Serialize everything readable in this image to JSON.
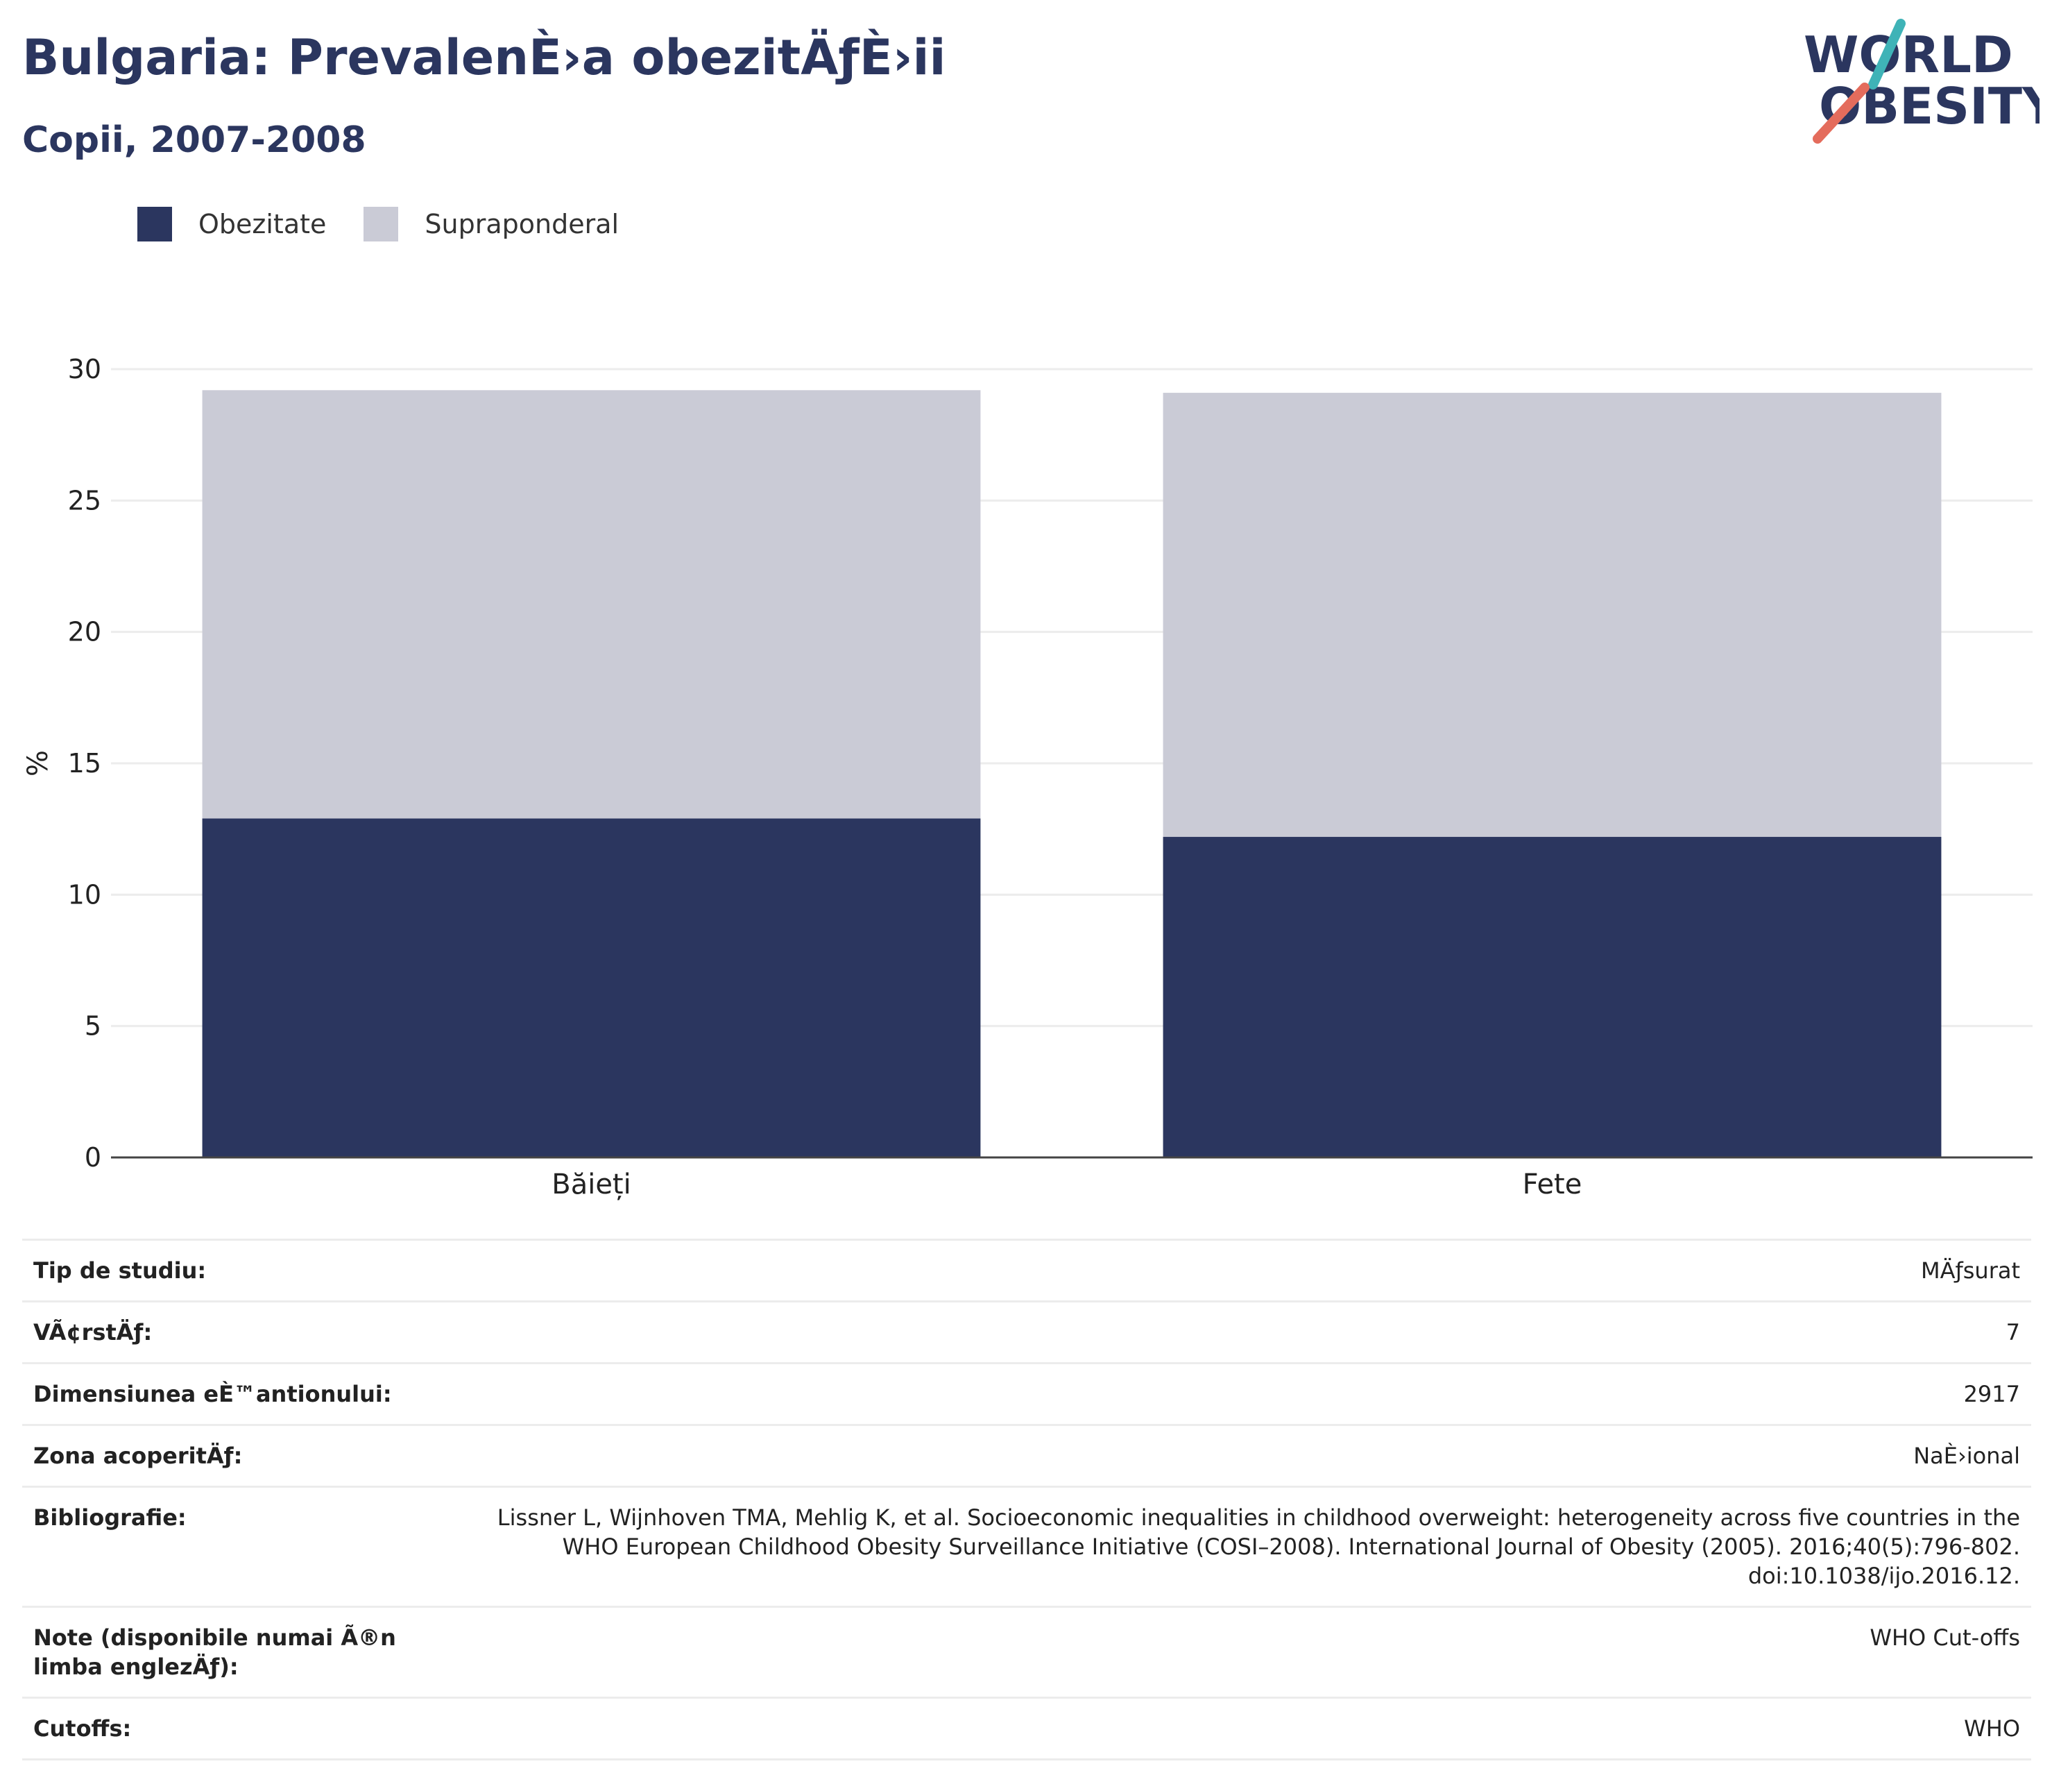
{
  "header": {
    "title": "Bulgaria: PrevalenÈ›a obezitÄƒÈ›ii",
    "subtitle": "Copii, 2007-2008",
    "logo_line1": "WORLD",
    "logo_line2": "OBESITY"
  },
  "colors": {
    "obesity": "#2b365f",
    "overweight": "#cacbd6",
    "text": "#2b365f",
    "logo_teal": "#3fb3b7",
    "logo_coral": "#e46c5c"
  },
  "chart_data": {
    "type": "bar",
    "stacked": true,
    "categories": [
      "Băieți",
      "Fete"
    ],
    "series": [
      {
        "name": "Obezitate",
        "values": [
          12.9,
          12.2
        ]
      },
      {
        "name": "Supraponderal",
        "values": [
          16.3,
          16.9
        ]
      }
    ],
    "title": "Bulgaria: PrevalenÈ›a obezitÄƒÈ›ii",
    "subtitle": "Copii, 2007-2008",
    "xlabel": "",
    "ylabel": "%",
    "ylim": [
      0,
      30
    ],
    "yticks": [
      0,
      5,
      10,
      15,
      20,
      25,
      30
    ],
    "grid": true,
    "legend": "top-left"
  },
  "info": {
    "rows": [
      {
        "label": "Tip de studiu:",
        "value": "MÄƒsurat"
      },
      {
        "label": "VÃ¢rstÄƒ:",
        "value": "7"
      },
      {
        "label": "Dimensiunea eÈ™antionului:",
        "value": "2917"
      },
      {
        "label": "Zona acoperitÄƒ:",
        "value": "NaÈ›ional"
      },
      {
        "label": "Bibliografie:",
        "value": "Lissner L, Wijnhoven TMA, Mehlig K, et al. Socioeconomic inequalities in childhood overweight: heterogeneity across five countries in the WHO European Childhood Obesity Surveillance Initiative (COSI–2008). International Journal of Obesity (2005). 2016;40(5):796-802. doi:10.1038/ijo.2016.12."
      },
      {
        "label": "Note (disponibile numai Ã®n limba englezÄƒ):",
        "value": "WHO Cut-offs"
      },
      {
        "label": "Cutoffs:",
        "value": "WHO"
      }
    ]
  }
}
